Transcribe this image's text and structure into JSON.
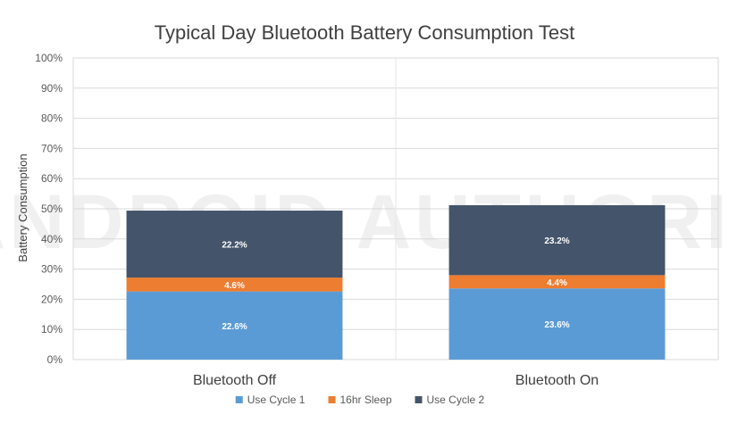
{
  "chart_data": {
    "type": "bar",
    "stacked": true,
    "title": "Typical Day Bluetooth Battery Consumption Test",
    "xlabel": "",
    "ylabel": "Battery Consumption",
    "categories": [
      "Bluetooth Off",
      "Bluetooth On"
    ],
    "series": [
      {
        "name": "Use Cycle 1",
        "values": [
          22.6,
          23.6
        ],
        "labels": [
          "22.6%",
          "23.6%"
        ],
        "color": "#5b9bd5"
      },
      {
        "name": "16hr Sleep",
        "values": [
          4.6,
          4.4
        ],
        "labels": [
          "4.6%",
          "4.4%"
        ],
        "color": "#ed7d31"
      },
      {
        "name": "Use Cycle 2",
        "values": [
          22.2,
          23.2
        ],
        "labels": [
          "22.2%",
          "23.2%"
        ],
        "color": "#44546a"
      }
    ],
    "ylim": [
      0,
      100
    ],
    "yticks": [
      0,
      10,
      20,
      30,
      40,
      50,
      60,
      70,
      80,
      90,
      100
    ],
    "ytick_labels": [
      "0%",
      "10%",
      "20%",
      "30%",
      "40%",
      "50%",
      "60%",
      "70%",
      "80%",
      "90%",
      "100%"
    ],
    "grid": true,
    "legend_position": "bottom",
    "watermark": "ANDROID AUTHORITY"
  }
}
